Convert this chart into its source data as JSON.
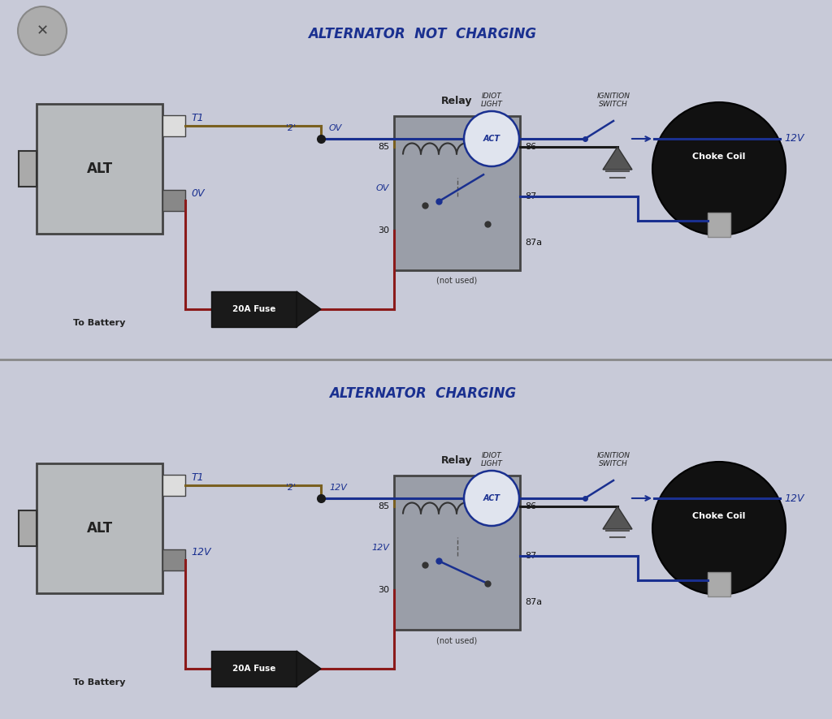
{
  "title1": "ALTERNATOR  NOT  CHARGING",
  "title2": "ALTERNATOR  CHARGING",
  "bg_top": "#d8dae6",
  "bg_bot": "#d4d8e4",
  "line_blue": "#1a3090",
  "line_red": "#8b1a1a",
  "line_tan": "#7a6020",
  "line_black": "#1a1a1a",
  "alt_face": "#b8bbbe",
  "alt_edge": "#444444",
  "relay_face": "#9a9ea8",
  "relay_edge": "#444444",
  "fuse_face": "#1a1a1a",
  "choke_face": "#111111",
  "white": "#ffffff",
  "panel_line": "#888888",
  "v1_t1": "0V",
  "v1_node": "OV",
  "v1_relay": "OV",
  "v2_t1": "12V",
  "v2_node": "12V",
  "v2_relay": "12V"
}
